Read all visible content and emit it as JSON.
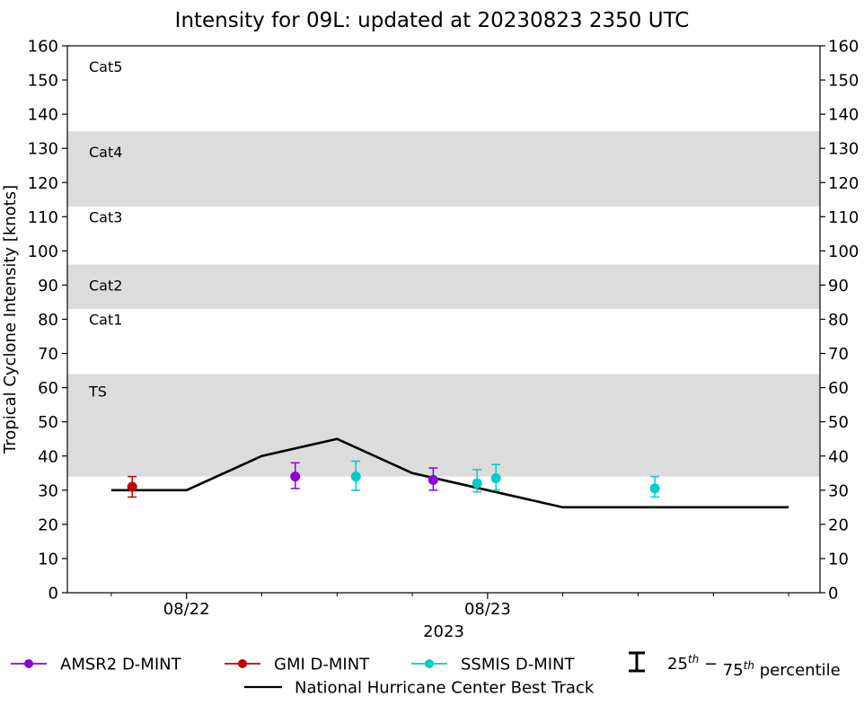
{
  "chart_data": {
    "type": "scatter",
    "title": "Intensity for 09L: updated at 20230823 2350 UTC",
    "xlabel": "2023",
    "ylabel": "Tropical Cyclone Intensity [knots]",
    "ylim": [
      0,
      160
    ],
    "yticks": [
      0,
      10,
      20,
      30,
      40,
      50,
      60,
      70,
      80,
      90,
      100,
      110,
      120,
      130,
      140,
      150,
      160
    ],
    "xlim": [
      "2023-08-21 14:30",
      "2023-08-24 02:30"
    ],
    "xticks": [
      {
        "label": "08/22",
        "time": "2023-08-22 00:00"
      },
      {
        "label": "08/23",
        "time": "2023-08-23 00:00"
      }
    ],
    "xminor_ticks": [
      "2023-08-21 18:00",
      "2023-08-22 06:00",
      "2023-08-22 12:00",
      "2023-08-22 18:00",
      "2023-08-23 06:00",
      "2023-08-23 12:00",
      "2023-08-23 18:00",
      "2023-08-24 00:00"
    ],
    "grid": false,
    "category_bands": [
      {
        "label": "TS",
        "ymin": 34,
        "ymax": 64,
        "shaded": true,
        "label_y": 59
      },
      {
        "label": "Cat1",
        "ymin": 64,
        "ymax": 83,
        "shaded": false,
        "label_y": 80
      },
      {
        "label": "Cat2",
        "ymin": 83,
        "ymax": 96,
        "shaded": true,
        "label_y": 90
      },
      {
        "label": "Cat3",
        "ymin": 96,
        "ymax": 113,
        "shaded": false,
        "label_y": 110
      },
      {
        "label": "Cat4",
        "ymin": 113,
        "ymax": 135,
        "shaded": true,
        "label_y": 129
      },
      {
        "label": "Cat5",
        "ymin": 135,
        "ymax": 160,
        "shaded": false,
        "label_y": 154
      }
    ],
    "band_color": "#dcdcdc",
    "best_track": {
      "name": "National Hurricane Center Best Track",
      "color": "#000000",
      "points": [
        {
          "time": "2023-08-21 18:00",
          "value": 30
        },
        {
          "time": "2023-08-22 00:00",
          "value": 30
        },
        {
          "time": "2023-08-22 06:00",
          "value": 40
        },
        {
          "time": "2023-08-22 12:00",
          "value": 45
        },
        {
          "time": "2023-08-22 18:00",
          "value": 35
        },
        {
          "time": "2023-08-23 00:00",
          "value": 30
        },
        {
          "time": "2023-08-23 06:00",
          "value": 25
        },
        {
          "time": "2023-08-23 12:00",
          "value": 25
        },
        {
          "time": "2023-08-23 18:00",
          "value": 25
        },
        {
          "time": "2023-08-24 00:00",
          "value": 25
        }
      ]
    },
    "series": [
      {
        "name": "AMSR2 D-MINT",
        "color": "#8b00d6",
        "points": [
          {
            "time": "2023-08-22 08:40",
            "value": 34,
            "p25": 30.5,
            "p75": 38
          },
          {
            "time": "2023-08-22 19:40",
            "value": 33,
            "p25": 30,
            "p75": 36.5
          }
        ]
      },
      {
        "name": "GMI D-MINT",
        "color": "#c00000",
        "points": [
          {
            "time": "2023-08-21 19:40",
            "value": 31,
            "p25": 28,
            "p75": 34
          }
        ]
      },
      {
        "name": "SSMIS D-MINT",
        "color": "#00cccc",
        "points": [
          {
            "time": "2023-08-22 13:30",
            "value": 34,
            "p25": 30,
            "p75": 38.5
          },
          {
            "time": "2023-08-22 23:10",
            "value": 32,
            "p25": 29.5,
            "p75": 36
          },
          {
            "time": "2023-08-23 00:40",
            "value": 33.5,
            "p25": 30,
            "p75": 37.5
          },
          {
            "time": "2023-08-23 13:20",
            "value": 30.5,
            "p25": 28,
            "p75": 34
          }
        ]
      }
    ],
    "legend": {
      "placement": "bottom",
      "percentile_label": "25th − 75th percentile"
    }
  }
}
